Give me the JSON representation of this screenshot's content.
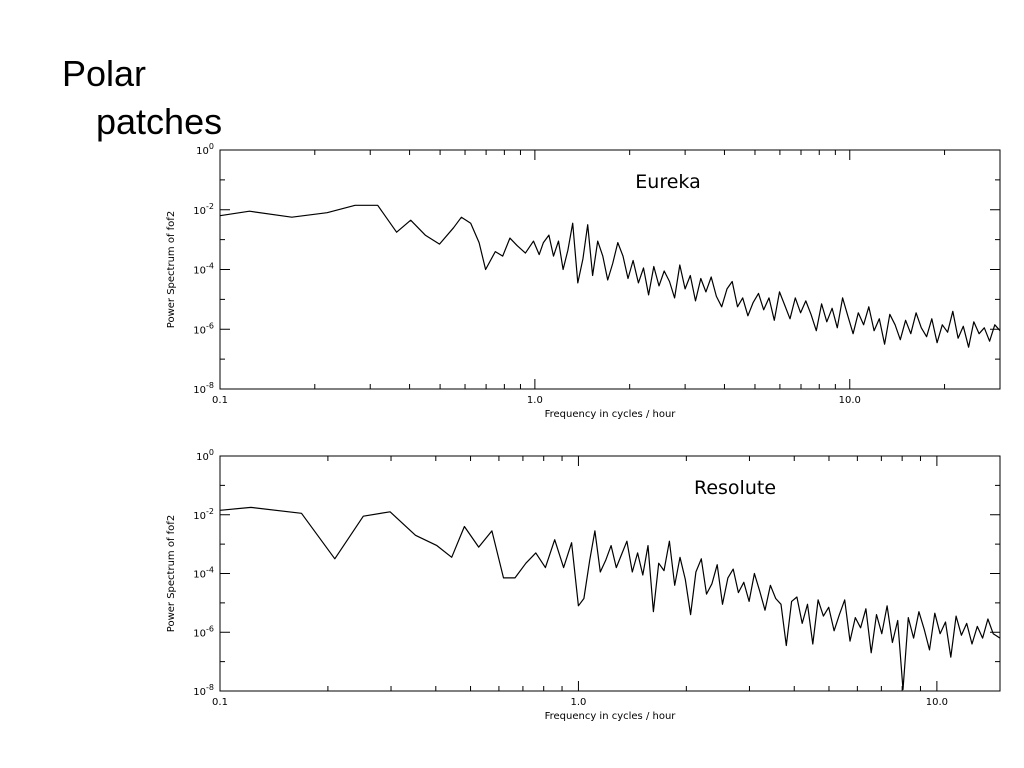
{
  "slide": {
    "title_line1": "Polar",
    "title_line2": "patches"
  },
  "chart_data": [
    {
      "type": "line",
      "title": "Eureka",
      "xlabel": "Frequency in cycles / hour",
      "ylabel": "Power Spectrum of fof2",
      "xscale": "log",
      "yscale": "log",
      "xlim": [
        0.1,
        30.0
      ],
      "ylim": [
        1e-08,
        1
      ],
      "xtick_labels": [
        "0.1",
        "1.0",
        "10.0"
      ],
      "xtick_values": [
        0.1,
        1.0,
        10.0
      ],
      "ytick_labels": [
        {
          "base": "10",
          "exp": "0"
        },
        {
          "base": "10",
          "exp": "-2"
        },
        {
          "base": "10",
          "exp": "-4"
        },
        {
          "base": "10",
          "exp": "-6"
        },
        {
          "base": "10",
          "exp": "-8"
        }
      ],
      "ytick_values": [
        0,
        -2,
        -4,
        -6,
        -8
      ],
      "grid": false,
      "series": [
        {
          "x": [
            0.1,
            0.1241,
            0.169,
            0.2188,
            0.2686,
            0.3169,
            0.3639,
            0.4034,
            0.4483,
            0.4978,
            0.5519,
            0.5842,
            0.6253,
            0.665,
            0.6972,
            0.7485,
            0.7903,
            0.8332,
            0.8781,
            0.9327,
            0.9896,
            1.0318,
            1.0639,
            1.1078,
            1.1455,
            1.1888,
            1.2296,
            1.2729,
            1.3187,
            1.3686,
            1.4207,
            1.4719,
            1.525,
            1.5833,
            1.643,
            1.7031,
            1.7663,
            1.8341,
            1.9041,
            1.9764,
            2.051,
            2.132,
            2.2126,
            2.2972,
            2.3852,
            2.4788,
            2.5751,
            2.6753,
            2.7779,
            2.8848,
            2.9988,
            3.1155,
            3.2374,
            3.3637,
            3.4935,
            3.6297,
            3.772,
            3.9197,
            4.0747,
            4.2317,
            4.3991,
            4.5703,
            4.749,
            4.9371,
            5.1299,
            5.3309,
            5.5401,
            5.7569,
            5.9842,
            6.2188,
            6.4614,
            6.7143,
            6.978,
            7.2511,
            7.5339,
            7.8317,
            8.138,
            8.4566,
            8.7867,
            9.1302,
            9.4869,
            9.859,
            10.245,
            10.647,
            11.063,
            11.495,
            11.944,
            12.413,
            12.899,
            13.404,
            13.927,
            14.473,
            15.04,
            15.63,
            16.24,
            16.875,
            17.536,
            18.222,
            18.935,
            19.676,
            20.447,
            21.247,
            22.079,
            22.943,
            23.841,
            24.775,
            25.745,
            26.753,
            27.8,
            28.889,
            30.0
          ],
          "y": [
            -2.2,
            -2.05,
            -2.25,
            -2.1,
            -1.85,
            -1.85,
            -2.75,
            -2.35,
            -2.85,
            -3.15,
            -2.6,
            -2.25,
            -2.45,
            -3.1,
            -4.0,
            -3.4,
            -3.55,
            -2.95,
            -3.2,
            -3.45,
            -3.05,
            -3.5,
            -3.1,
            -2.85,
            -3.55,
            -3.05,
            -4.0,
            -3.35,
            -2.45,
            -4.45,
            -3.65,
            -2.5,
            -4.2,
            -3.05,
            -3.55,
            -4.35,
            -3.8,
            -3.1,
            -3.55,
            -4.3,
            -3.7,
            -4.45,
            -3.95,
            -4.85,
            -3.9,
            -4.55,
            -4.05,
            -4.4,
            -4.95,
            -3.85,
            -4.65,
            -4.2,
            -5.05,
            -4.3,
            -4.75,
            -4.25,
            -4.9,
            -5.25,
            -4.65,
            -4.4,
            -5.25,
            -4.95,
            -5.55,
            -5.1,
            -4.8,
            -5.35,
            -4.95,
            -5.7,
            -4.75,
            -5.2,
            -5.65,
            -4.95,
            -5.45,
            -5.05,
            -5.5,
            -6.05,
            -5.15,
            -5.75,
            -5.3,
            -5.95,
            -4.95,
            -5.55,
            -6.15,
            -5.45,
            -5.85,
            -5.25,
            -6.05,
            -5.65,
            -6.5,
            -5.5,
            -5.85,
            -6.35,
            -5.7,
            -6.15,
            -5.45,
            -5.95,
            -6.25,
            -5.65,
            -6.45,
            -5.85,
            -6.1,
            -5.4,
            -6.3,
            -5.9,
            -6.6,
            -5.75,
            -6.15,
            -5.95,
            -6.4,
            -5.85,
            -6.05
          ]
        }
      ]
    },
    {
      "type": "line",
      "title": "Resolute",
      "xlabel": "Frequency in cycles / hour",
      "ylabel": "Power Spectrum of fof2",
      "xscale": "log",
      "yscale": "log",
      "xlim": [
        0.1,
        15.0
      ],
      "ylim": [
        1e-08,
        1
      ],
      "xtick_labels": [
        "0.1",
        "1.0",
        "10.0"
      ],
      "xtick_values": [
        0.1,
        1.0,
        10.0
      ],
      "ytick_labels": [
        {
          "base": "10",
          "exp": "0"
        },
        {
          "base": "10",
          "exp": "-2"
        },
        {
          "base": "10",
          "exp": "-4"
        },
        {
          "base": "10",
          "exp": "-6"
        },
        {
          "base": "10",
          "exp": "-8"
        }
      ],
      "ytick_values": [
        0,
        -2,
        -4,
        -6,
        -8
      ],
      "grid": false,
      "series": [
        {
          "x": [
            0.1,
            0.122,
            0.1688,
            0.209,
            0.251,
            0.2983,
            0.351,
            0.4027,
            0.443,
            0.4808,
            0.5268,
            0.5736,
            0.6181,
            0.6652,
            0.7135,
            0.7604,
            0.809,
            0.8585,
            0.9091,
            0.9571,
            1.0,
            1.0358,
            1.0751,
            1.1113,
            1.1506,
            1.1915,
            1.2335,
            1.2753,
            1.3195,
            1.3652,
            1.4134,
            1.4619,
            1.5123,
            1.5638,
            1.619,
            1.675,
            1.7329,
            1.7932,
            1.8554,
            1.9202,
            1.9871,
            2.0557,
            2.1272,
            2.2014,
            2.2772,
            2.3562,
            2.4386,
            2.5234,
            2.6112,
            2.7017,
            2.795,
            2.8922,
            2.9928,
            3.0971,
            3.2041,
            3.3152,
            3.4311,
            3.5499,
            3.6727,
            3.8003,
            3.9326,
            4.0692,
            4.2098,
            4.3567,
            4.5076,
            4.6637,
            4.8252,
            4.9926,
            5.1659,
            5.3452,
            5.5306,
            5.7222,
            5.9206,
            6.1262,
            6.3384,
            6.558,
            6.7853,
            7.02,
            7.2636,
            7.5161,
            7.7763,
            8.0448,
            8.3235,
            8.6124,
            8.9113,
            9.2197,
            9.5394,
            9.8701,
            10.212,
            10.566,
            10.932,
            11.311,
            11.703,
            12.108,
            12.528,
            12.962,
            13.411,
            13.876,
            14.357,
            15.0
          ],
          "y": [
            -1.85,
            -1.75,
            -1.95,
            -3.5,
            -2.05,
            -1.9,
            -2.7,
            -3.05,
            -3.45,
            -2.4,
            -3.1,
            -2.55,
            -4.15,
            -4.15,
            -3.65,
            -3.3,
            -3.8,
            -2.85,
            -3.8,
            -2.95,
            -5.1,
            -4.85,
            -3.55,
            -2.55,
            -3.95,
            -3.55,
            -3.05,
            -3.8,
            -3.35,
            -2.9,
            -3.95,
            -3.3,
            -4.05,
            -3.05,
            -5.3,
            -3.65,
            -3.9,
            -2.9,
            -4.4,
            -3.45,
            -4.2,
            -5.4,
            -3.95,
            -3.5,
            -4.7,
            -4.35,
            -3.7,
            -5.05,
            -4.15,
            -3.85,
            -4.65,
            -4.3,
            -4.95,
            -4.0,
            -4.6,
            -5.25,
            -4.4,
            -4.85,
            -5.05,
            -6.45,
            -4.95,
            -4.8,
            -5.7,
            -5.05,
            -6.4,
            -4.9,
            -5.45,
            -5.15,
            -5.95,
            -5.4,
            -4.9,
            -6.3,
            -5.5,
            -5.85,
            -5.2,
            -6.7,
            -5.4,
            -6.05,
            -5.1,
            -6.35,
            -5.6,
            -7.95,
            -5.5,
            -6.2,
            -5.3,
            -5.9,
            -6.6,
            -5.35,
            -6.05,
            -5.65,
            -6.85,
            -5.45,
            -6.1,
            -5.7,
            -6.4,
            -5.8,
            -6.2,
            -5.55,
            -6.05,
            -6.2
          ]
        }
      ]
    }
  ]
}
